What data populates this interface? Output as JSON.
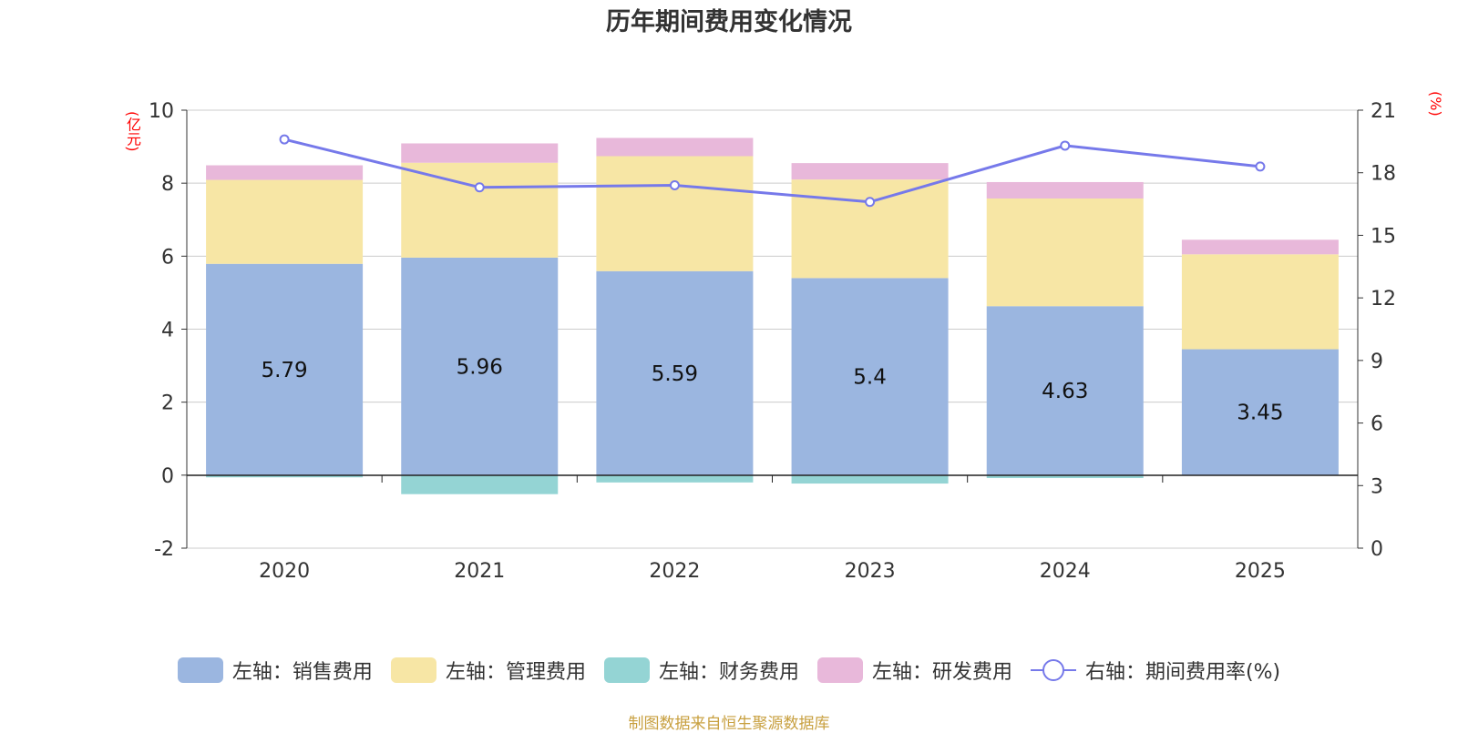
{
  "chart_data": {
    "type": "bar",
    "title": "历年期间费用变化情况",
    "categories": [
      "2020",
      "2021",
      "2022",
      "2023",
      "2024",
      "2025"
    ],
    "left_axis": {
      "unit": "(亿元)",
      "ylim": [
        -2,
        10
      ],
      "ticks": [
        -2,
        0,
        2,
        4,
        6,
        8,
        10
      ]
    },
    "right_axis": {
      "unit": "(%)",
      "ylim": [
        0,
        21
      ],
      "ticks": [
        0,
        3,
        6,
        9,
        12,
        15,
        18,
        21
      ]
    },
    "series": [
      {
        "name": "左轴：销售费用",
        "type": "bar",
        "stack": "total",
        "color": "#9bb6e0",
        "values": [
          5.79,
          5.96,
          5.59,
          5.4,
          4.63,
          3.45
        ],
        "labels": [
          "5.79",
          "5.96",
          "5.59",
          "5.4",
          "4.63",
          "3.45"
        ]
      },
      {
        "name": "左轴：管理费用",
        "type": "bar",
        "stack": "total",
        "color": "#f7e6a5",
        "values": [
          2.3,
          2.6,
          3.15,
          2.7,
          2.95,
          2.6
        ]
      },
      {
        "name": "左轴：财务费用",
        "type": "bar",
        "stack": "total",
        "color": "#94d4d4",
        "values": [
          -0.06,
          -0.52,
          -0.2,
          -0.23,
          -0.08,
          0.0
        ]
      },
      {
        "name": "左轴：研发费用",
        "type": "bar",
        "stack": "total",
        "color": "#e8b8da",
        "values": [
          0.4,
          0.53,
          0.5,
          0.45,
          0.45,
          0.4
        ]
      },
      {
        "name": "右轴：期间费用率(%)",
        "type": "line",
        "axis": "right",
        "color": "#7679ea",
        "values": [
          19.6,
          17.3,
          17.4,
          16.6,
          19.3,
          18.3
        ]
      }
    ],
    "grid": true,
    "legend_position": "bottom"
  },
  "source_note": "制图数据来自恒生聚源数据库"
}
